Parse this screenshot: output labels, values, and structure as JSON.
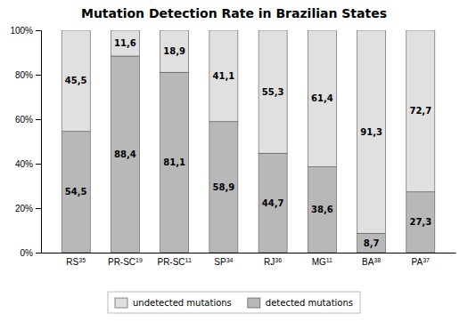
{
  "chart_data": {
    "type": "bar",
    "title": "Mutation Detection Rate in Brazilian States",
    "categories": [
      "RS",
      "PR-SC",
      "PR-SC",
      "SP",
      "RJ",
      "MG",
      "BA",
      "PA"
    ],
    "superscripts": [
      "35",
      "19",
      "11",
      "34",
      "36",
      "11",
      "38",
      "37"
    ],
    "stacked": true,
    "data_labels": true,
    "grid": false,
    "legend": "bottom",
    "series": [
      {
        "name": "detected mutations",
        "color": "#b8b8b8",
        "values": [
          54.5,
          88.4,
          81.1,
          58.9,
          44.7,
          38.6,
          8.7,
          27.3
        ],
        "value_labels": [
          "54,5",
          "88,4",
          "81,1",
          "58,9",
          "44,7",
          "38,6",
          "8,7",
          "27,3"
        ]
      },
      {
        "name": "undetected mutations",
        "color": "#e0e0e0",
        "values": [
          45.5,
          11.6,
          18.9,
          41.1,
          55.3,
          61.4,
          91.3,
          72.7
        ],
        "value_labels": [
          "45,5",
          "11,6",
          "18,9",
          "41,1",
          "55,3",
          "61,4",
          "91,3",
          "72,7"
        ]
      }
    ],
    "ylim": [
      0,
      100
    ],
    "yticks": [
      {
        "value": 0,
        "label": "0%"
      },
      {
        "value": 20,
        "label": "20%"
      },
      {
        "value": 40,
        "label": "40%"
      },
      {
        "value": 60,
        "label": "60%"
      },
      {
        "value": 80,
        "label": "80%"
      },
      {
        "value": 100,
        "label": "100%"
      }
    ]
  }
}
